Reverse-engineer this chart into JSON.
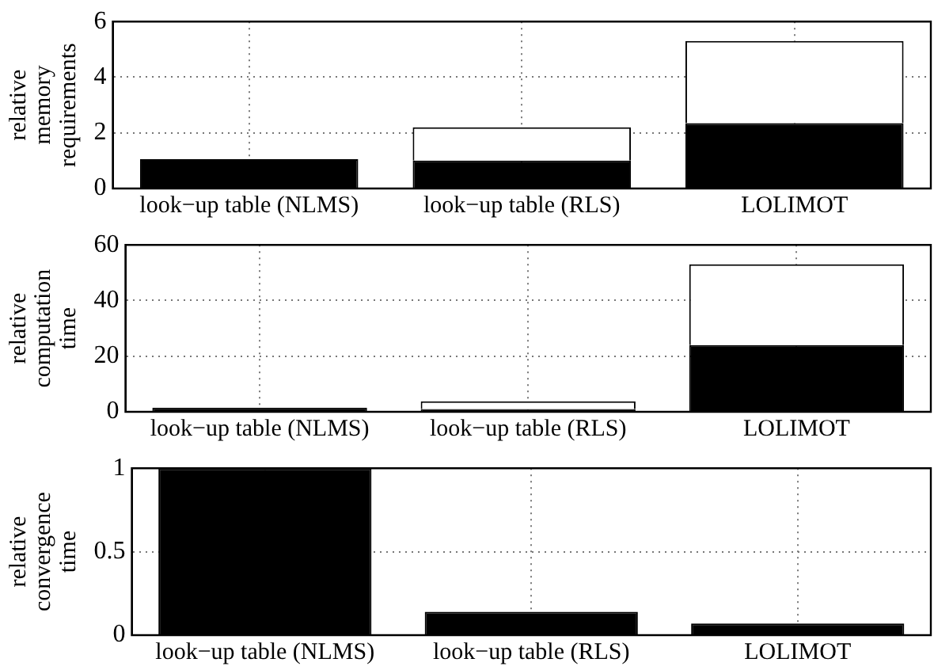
{
  "chart_data": [
    {
      "type": "bar",
      "stacked": true,
      "ylabel": "relative memory requirements",
      "categories": [
        "look−up table (NLMS)",
        "look−up table (RLS)",
        "LOLIMOT"
      ],
      "ylim": [
        0,
        6
      ],
      "yticks": [
        0,
        2,
        4,
        6
      ],
      "grid": true,
      "series": [
        {
          "color": "#000000",
          "values": [
            1.05,
            1.0,
            2.35
          ]
        },
        {
          "color": "#ffffff",
          "values": [
            0,
            1.2,
            2.95
          ]
        }
      ]
    },
    {
      "type": "bar",
      "stacked": true,
      "ylabel": "relative computation time",
      "categories": [
        "look−up table (NLMS)",
        "look−up table (RLS)",
        "LOLIMOT"
      ],
      "ylim": [
        0,
        60
      ],
      "yticks": [
        0,
        20,
        40,
        60
      ],
      "grid": true,
      "series": [
        {
          "color": "#000000",
          "values": [
            1.5,
            1.0,
            24
          ]
        },
        {
          "color": "#ffffff",
          "values": [
            0,
            2.8,
            29
          ]
        }
      ]
    },
    {
      "type": "bar",
      "ylabel": "relative convergence time",
      "categories": [
        "look−up table (NLMS)",
        "look−up table (RLS)",
        "LOLIMOT"
      ],
      "ylim": [
        0,
        1
      ],
      "yticks": [
        0,
        0.5,
        1
      ],
      "grid": true,
      "series": [
        {
          "color": "#000000",
          "values": [
            1,
            0.14,
            0.07
          ]
        }
      ]
    }
  ]
}
